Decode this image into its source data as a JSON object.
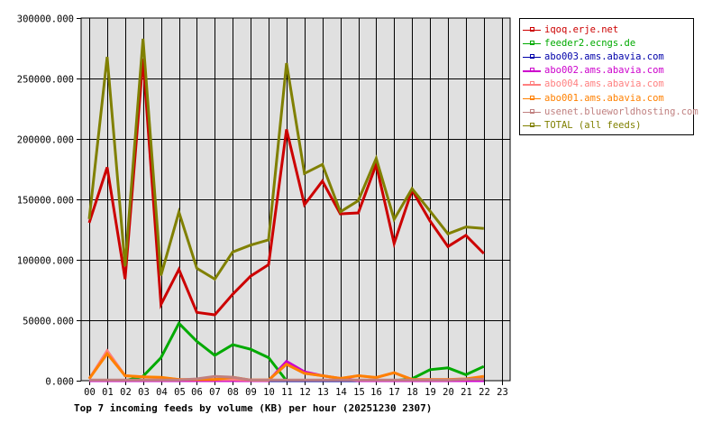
{
  "chart_data": {
    "type": "line",
    "title": "Top 7 incoming feeds by volume (KB) per hour (20251230 2307)",
    "xlabel": "",
    "ylabel": "",
    "ylim": [
      0,
      300000
    ],
    "y_ticks": [
      "0.000",
      "50000.000",
      "100000.000",
      "150000.000",
      "200000.000",
      "250000.000",
      "300000.000"
    ],
    "y_tick_values": [
      0,
      50000,
      100000,
      150000,
      200000,
      250000,
      300000
    ],
    "categories": [
      "00",
      "01",
      "02",
      "03",
      "04",
      "05",
      "06",
      "07",
      "08",
      "09",
      "10",
      "11",
      "12",
      "13",
      "14",
      "15",
      "16",
      "17",
      "18",
      "19",
      "20",
      "21",
      "22",
      "23"
    ],
    "grid": true,
    "legend_position": "right",
    "plot_background": "#e0e0e0",
    "series": [
      {
        "name": "iqoq.erje.net",
        "color": "#cc0000",
        "values": [
          130700,
          176500,
          84000,
          266500,
          63000,
          92000,
          56500,
          54500,
          71500,
          86500,
          96000,
          207800,
          145500,
          165100,
          138000,
          138800,
          178900,
          113500,
          157700,
          132200,
          111000,
          120200,
          105200,
          null
        ]
      },
      {
        "name": "feeder2.ecngs.de",
        "color": "#00aa00",
        "values": [
          0,
          0,
          0,
          3600,
          19000,
          47500,
          32500,
          21000,
          29800,
          26000,
          19000,
          0,
          0,
          0,
          0,
          0,
          0,
          0,
          1600,
          9100,
          10600,
          4900,
          11800,
          null
        ]
      },
      {
        "name": "abo003.ams.abavia.com",
        "color": "#0000aa",
        "values": [
          0,
          0,
          0,
          0,
          0,
          0,
          0,
          0,
          0,
          0,
          0,
          0,
          0,
          0,
          0,
          0,
          0,
          0,
          0,
          0,
          0,
          0,
          0,
          null
        ]
      },
      {
        "name": "abo002.ams.abavia.com",
        "color": "#cc00cc",
        "values": [
          0,
          0,
          0,
          0,
          0,
          0,
          0,
          0,
          0,
          0,
          0,
          16000,
          7300,
          4100,
          1900,
          0,
          0,
          0,
          0,
          0,
          0,
          0,
          0,
          null
        ]
      },
      {
        "name": "abo004.ams.abavia.com",
        "color": "#ff8080",
        "values": [
          1600,
          24800,
          4100,
          3100,
          2400,
          1000,
          1000,
          1000,
          1000,
          500,
          500,
          13600,
          6100,
          4100,
          1900,
          4100,
          2600,
          6600,
          1000,
          1000,
          1000,
          1000,
          3600,
          null
        ]
      },
      {
        "name": "abo001.ams.abavia.com",
        "color": "#ff8000",
        "values": [
          1600,
          22300,
          4100,
          3100,
          2800,
          1000,
          1000,
          1000,
          2800,
          500,
          500,
          13600,
          6100,
          4100,
          1900,
          4100,
          2600,
          6600,
          1000,
          1000,
          1000,
          1500,
          3600,
          null
        ]
      },
      {
        "name": "usenet.blueworldhosting.com",
        "color": "#c08080",
        "values": [
          500,
          500,
          500,
          500,
          500,
          500,
          1500,
          3600,
          2800,
          500,
          500,
          500,
          500,
          500,
          500,
          500,
          500,
          500,
          500,
          500,
          500,
          1200,
          1200,
          null
        ]
      },
      {
        "name": "TOTAL (all feeds)",
        "color": "#808000",
        "values": [
          133700,
          267800,
          94700,
          282800,
          87000,
          139500,
          93000,
          84000,
          106500,
          112200,
          116500,
          262700,
          171400,
          178900,
          139700,
          148900,
          183900,
          133500,
          158900,
          140400,
          121500,
          127200,
          126000,
          null
        ]
      }
    ]
  },
  "legend": {
    "items": [
      {
        "label": "iqoq.erje.net",
        "color": "#cc0000"
      },
      {
        "label": "feeder2.ecngs.de",
        "color": "#00aa00"
      },
      {
        "label": "abo003.ams.abavia.com",
        "color": "#0000aa"
      },
      {
        "label": "abo002.ams.abavia.com",
        "color": "#cc00cc"
      },
      {
        "label": "abo004.ams.abavia.com",
        "color": "#ff8080"
      },
      {
        "label": "abo001.ams.abavia.com",
        "color": "#ff8000"
      },
      {
        "label": "usenet.blueworldhosting.com",
        "color": "#c08080"
      },
      {
        "label": "TOTAL (all feeds)",
        "color": "#808000"
      }
    ]
  }
}
